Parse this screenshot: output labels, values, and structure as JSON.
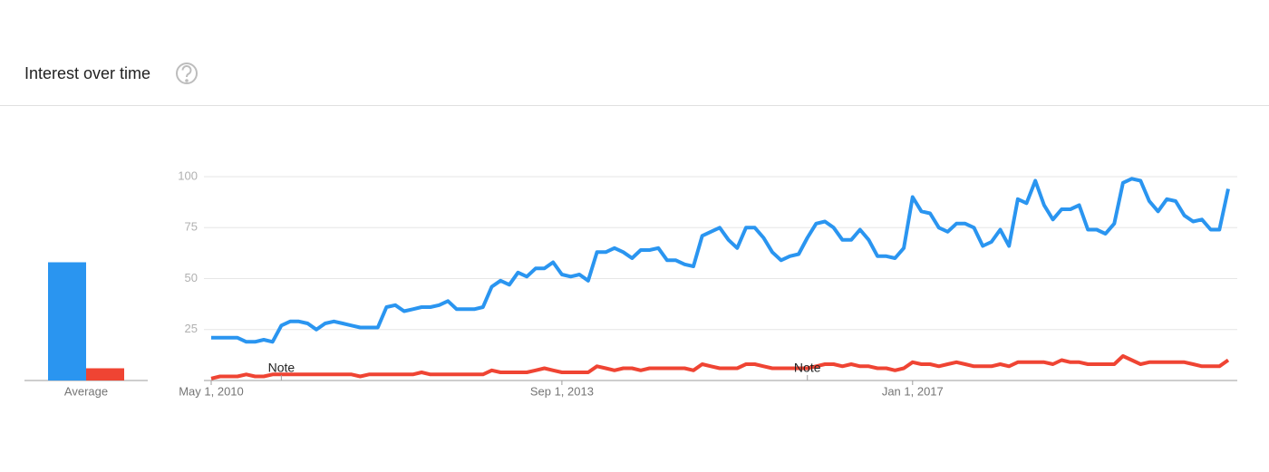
{
  "chart_data": [
    {
      "type": "bar",
      "categories": [
        "Average"
      ],
      "series": [
        {
          "color": "#2a95f0",
          "values": [
            58
          ]
        },
        {
          "color": "#ef4433",
          "values": [
            6
          ]
        }
      ],
      "ylim": [
        0,
        100
      ]
    },
    {
      "type": "line",
      "title": "Interest over time",
      "x": [
        0,
        1,
        2,
        3,
        4,
        5,
        6,
        7,
        8,
        9,
        10,
        11,
        12,
        13,
        14,
        15,
        16,
        17,
        18,
        19,
        20,
        21,
        22,
        23,
        24,
        25,
        26,
        27,
        28,
        29,
        30,
        31,
        32,
        33,
        34,
        35,
        36,
        37,
        38,
        39,
        40,
        41,
        42,
        43,
        44,
        45,
        46,
        47,
        48,
        49,
        50,
        51,
        52,
        53,
        54,
        55,
        56,
        57,
        58,
        59,
        60,
        61,
        62,
        63,
        64,
        65,
        66,
        67,
        68,
        69,
        70,
        71,
        72,
        73,
        74,
        75,
        76,
        77,
        78,
        79,
        80,
        81,
        82,
        83,
        84,
        85,
        86,
        87,
        88,
        89,
        90,
        91,
        92,
        93,
        94,
        95,
        96,
        97,
        98,
        99,
        100,
        101,
        102,
        103,
        104,
        105,
        106,
        107,
        108,
        109,
        110,
        111,
        112,
        113,
        114,
        115,
        116
      ],
      "series": [
        {
          "color": "#2a95f0",
          "values": [
            21,
            21,
            21,
            21,
            19,
            19,
            20,
            19,
            27,
            29,
            29,
            28,
            25,
            28,
            29,
            28,
            27,
            26,
            26,
            26,
            36,
            37,
            34,
            35,
            36,
            36,
            37,
            39,
            35,
            35,
            35,
            36,
            46,
            49,
            47,
            53,
            51,
            55,
            55,
            58,
            52,
            51,
            52,
            49,
            63,
            63,
            65,
            63,
            60,
            64,
            64,
            65,
            59,
            59,
            57,
            56,
            71,
            73,
            75,
            69,
            65,
            75,
            75,
            70,
            63,
            59,
            61,
            62,
            70,
            77,
            78,
            75,
            69,
            69,
            74,
            69,
            61,
            61,
            60,
            65,
            90,
            83,
            82,
            75,
            73,
            77,
            77,
            75,
            66,
            68,
            74,
            66,
            89,
            87,
            98,
            86,
            79,
            84,
            84,
            86,
            74,
            74,
            72,
            77,
            97,
            99,
            98,
            88,
            83,
            89,
            88,
            81,
            78,
            79,
            74,
            74,
            94
          ]
        },
        {
          "color": "#ef4433",
          "values": [
            1,
            2,
            2,
            2,
            3,
            2,
            2,
            3,
            3,
            3,
            3,
            3,
            3,
            3,
            3,
            3,
            3,
            2,
            3,
            3,
            3,
            3,
            3,
            3,
            4,
            3,
            3,
            3,
            3,
            3,
            3,
            3,
            5,
            4,
            4,
            4,
            4,
            5,
            6,
            5,
            4,
            4,
            4,
            4,
            7,
            6,
            5,
            6,
            6,
            5,
            6,
            6,
            6,
            6,
            6,
            5,
            8,
            7,
            6,
            6,
            6,
            8,
            8,
            7,
            6,
            6,
            6,
            6,
            6,
            7,
            8,
            8,
            7,
            8,
            7,
            7,
            6,
            6,
            5,
            6,
            9,
            8,
            8,
            7,
            8,
            9,
            8,
            7,
            7,
            7,
            8,
            7,
            9,
            9,
            9,
            9,
            8,
            10,
            9,
            9,
            8,
            8,
            8,
            8,
            12,
            10,
            8,
            9,
            9,
            9,
            9,
            9,
            8,
            7,
            7,
            7,
            10
          ]
        }
      ],
      "xlim": [
        0,
        116
      ],
      "xticks": [
        {
          "value": 0,
          "label": "May 1, 2010"
        },
        {
          "value": 40,
          "label": "Sep 1, 2013"
        },
        {
          "value": 80,
          "label": "Jan 1, 2017"
        }
      ],
      "ylim": [
        0,
        100
      ],
      "yticks": [
        25,
        50,
        75,
        100
      ],
      "grid": true,
      "annotations": [
        {
          "text": "Note",
          "x": 8
        },
        {
          "text": "Note",
          "x": 68
        }
      ]
    }
  ]
}
